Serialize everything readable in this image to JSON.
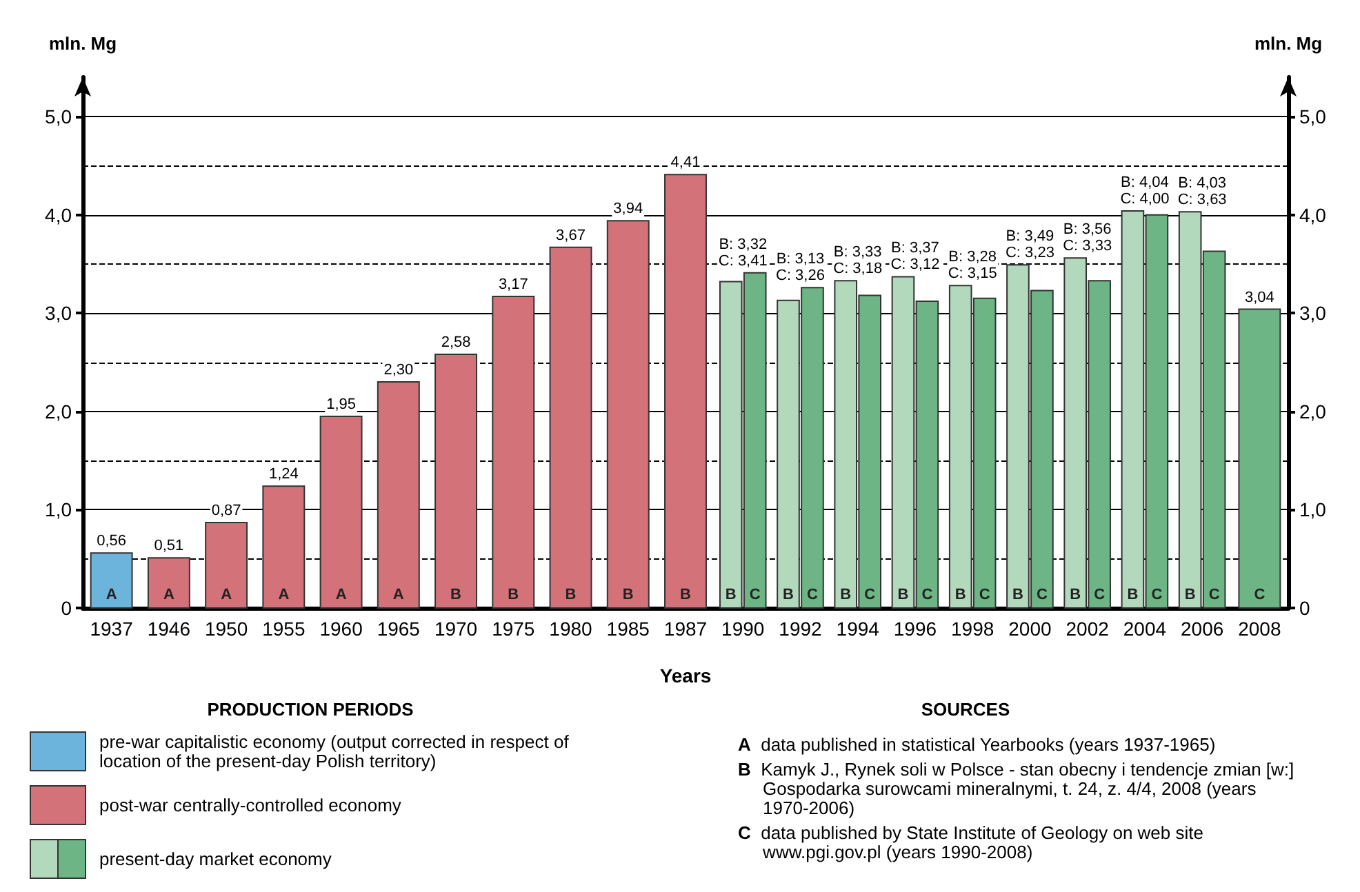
{
  "chart_data": {
    "type": "bar",
    "xlabel": "Years",
    "ylabel": "mln. Mg",
    "y2label": "mln. Mg",
    "legend_title": "PRODUCTION PERIODS",
    "legend": "bottom",
    "grid": true,
    "categories": [
      "1937",
      "1946",
      "1950",
      "1955",
      "1960",
      "1965",
      "1970",
      "1975",
      "1980",
      "1985",
      "1987",
      "1990",
      "1992",
      "1994",
      "1996",
      "1998",
      "2000",
      "2002",
      "2004",
      "2006",
      "2008"
    ],
    "ylim": [
      0,
      5.4
    ],
    "yticks": [
      0,
      {
        "value": 0.5,
        "label": null
      },
      {
        "value": 1,
        "label": "1,0"
      },
      {
        "value": 1.5,
        "label": null
      },
      {
        "value": 2,
        "label": "2,0"
      },
      {
        "value": 2.5,
        "label": null
      },
      {
        "value": 3,
        "label": "3,0"
      },
      {
        "value": 3.5,
        "label": null
      },
      {
        "value": 4,
        "label": "4,0"
      },
      {
        "value": 4.5,
        "label": null
      },
      {
        "value": 5,
        "label": "5,0"
      }
    ],
    "y2lim": [
      0,
      5.4
    ],
    "y2ticks": [
      0,
      {
        "value": 1,
        "label": "1,0"
      },
      {
        "value": 2,
        "label": "2,0"
      },
      {
        "value": 3,
        "label": "3,0"
      },
      {
        "value": 4,
        "label": "4,0"
      },
      {
        "value": 5,
        "label": "5,0"
      }
    ],
    "series": [
      {
        "name": "pre-war capitalistic economy (output corrected in respect of location of the present-day Polish territory)",
        "color": "#6cb4dc",
        "values": [
          0.56,
          null,
          null,
          null,
          null,
          null,
          null,
          null,
          null,
          null,
          null,
          null,
          null,
          null,
          null,
          null,
          null,
          null,
          null,
          null,
          null
        ],
        "value_labels": [
          "0,56",
          null,
          null,
          null,
          null,
          null,
          null,
          null,
          null,
          null,
          null,
          null,
          null,
          null,
          null,
          null,
          null,
          null,
          null,
          null,
          null
        ]
      },
      {
        "name": "post-war centrally-controlled economy",
        "color": "#d4727a",
        "values": [
          null,
          0.51,
          0.87,
          1.24,
          1.95,
          2.3,
          2.58,
          3.17,
          3.67,
          3.94,
          4.41,
          null,
          null,
          null,
          null,
          null,
          null,
          null,
          null,
          null,
          null
        ],
        "value_labels": [
          null,
          "0,51",
          "0,87",
          "1,24",
          "1,95",
          "2,30",
          "2,58",
          "3,17",
          "3,67",
          "3,94",
          "4,41",
          null,
          null,
          null,
          null,
          null,
          null,
          null,
          null,
          null,
          null
        ]
      },
      {
        "name": "present-day market economy",
        "color": "#b3d9bd",
        "values": [
          null,
          null,
          null,
          null,
          null,
          null,
          null,
          null,
          null,
          null,
          null,
          3.32,
          3.13,
          3.33,
          3.37,
          3.28,
          3.49,
          3.56,
          4.04,
          4.03,
          null
        ],
        "value_labels": [
          null,
          null,
          null,
          null,
          null,
          null,
          null,
          null,
          null,
          null,
          null,
          "B: 3,32",
          "B: 3,13",
          "B: 3,33",
          "B: 3,37",
          "B: 3,28",
          "B: 3,49",
          "B: 3,56",
          "B: 4,04",
          "B: 4,03",
          null
        ]
      },
      {
        "color": "#6db584",
        "values": [
          null,
          null,
          null,
          null,
          null,
          null,
          null,
          null,
          null,
          null,
          null,
          3.41,
          3.26,
          3.18,
          3.12,
          3.15,
          3.23,
          3.33,
          4.0,
          3.63,
          3.04
        ],
        "value_labels": [
          null,
          null,
          null,
          null,
          null,
          null,
          null,
          null,
          null,
          null,
          null,
          "C: 3,41",
          "C: 3,26",
          "C: 3,18",
          "C: 3,12",
          "C: 3,15",
          "C: 3,23",
          "C: 3,33",
          "C: 4,00",
          "C: 3,63",
          "3,04"
        ]
      }
    ],
    "annotations": [
      "SOURCES",
      "A data published in statistical Yearbooks (years 1937-1965)",
      "B Kamyk J., Rynek soli w Polsce - stan obecny i tendencje zmian [w:] Gospodarka surowcami mineralnymi, t. 24, z. 4/4, 2008 (years 1970-2006)",
      "C data published by State Institute of Geology on web site www.pgi.gov.pl (years 1990-2008)",
      {
        "text": "A",
        "x": "1937",
        "y": 0
      },
      {
        "text": "A",
        "x": "1946",
        "y": 0
      },
      {
        "text": "A",
        "x": "1950",
        "y": 0
      },
      {
        "text": "A",
        "x": "1955",
        "y": 0
      },
      {
        "text": "A",
        "x": "1960",
        "y": 0
      },
      {
        "text": "A",
        "x": "1965",
        "y": 0
      },
      {
        "text": "B",
        "x": "1970",
        "y": 0
      },
      {
        "text": "B",
        "x": "1975",
        "y": 0
      },
      {
        "text": "B",
        "x": "1980",
        "y": 0
      },
      {
        "text": "B",
        "x": "1985",
        "y": 0
      },
      {
        "text": "B",
        "x": "1987",
        "y": 0
      },
      {
        "text": "B",
        "x": "1990",
        "y": 0
      },
      {
        "text": "C",
        "x": "1990",
        "y": 0
      },
      {
        "text": "B",
        "x": "1992",
        "y": 0
      },
      {
        "text": "C",
        "x": "1992",
        "y": 0
      },
      {
        "text": "B",
        "x": "1994",
        "y": 0
      },
      {
        "text": "C",
        "x": "1994",
        "y": 0
      },
      {
        "text": "B",
        "x": "1996",
        "y": 0
      },
      {
        "text": "C",
        "x": "1996",
        "y": 0
      },
      {
        "text": "B",
        "x": "1998",
        "y": 0
      },
      {
        "text": "C",
        "x": "1998",
        "y": 0
      },
      {
        "text": "B",
        "x": "2000",
        "y": 0
      },
      {
        "text": "C",
        "x": "2000",
        "y": 0
      },
      {
        "text": "B",
        "x": "2002",
        "y": 0
      },
      {
        "text": "C",
        "x": "2002",
        "y": 0
      },
      {
        "text": "B",
        "x": "2004",
        "y": 0
      },
      {
        "text": "C",
        "x": "2004",
        "y": 0
      },
      {
        "text": "B",
        "x": "2006",
        "y": 0
      },
      {
        "text": "C",
        "x": "2006",
        "y": 0
      },
      {
        "text": "C",
        "x": "2008",
        "y": 0
      }
    ]
  }
}
